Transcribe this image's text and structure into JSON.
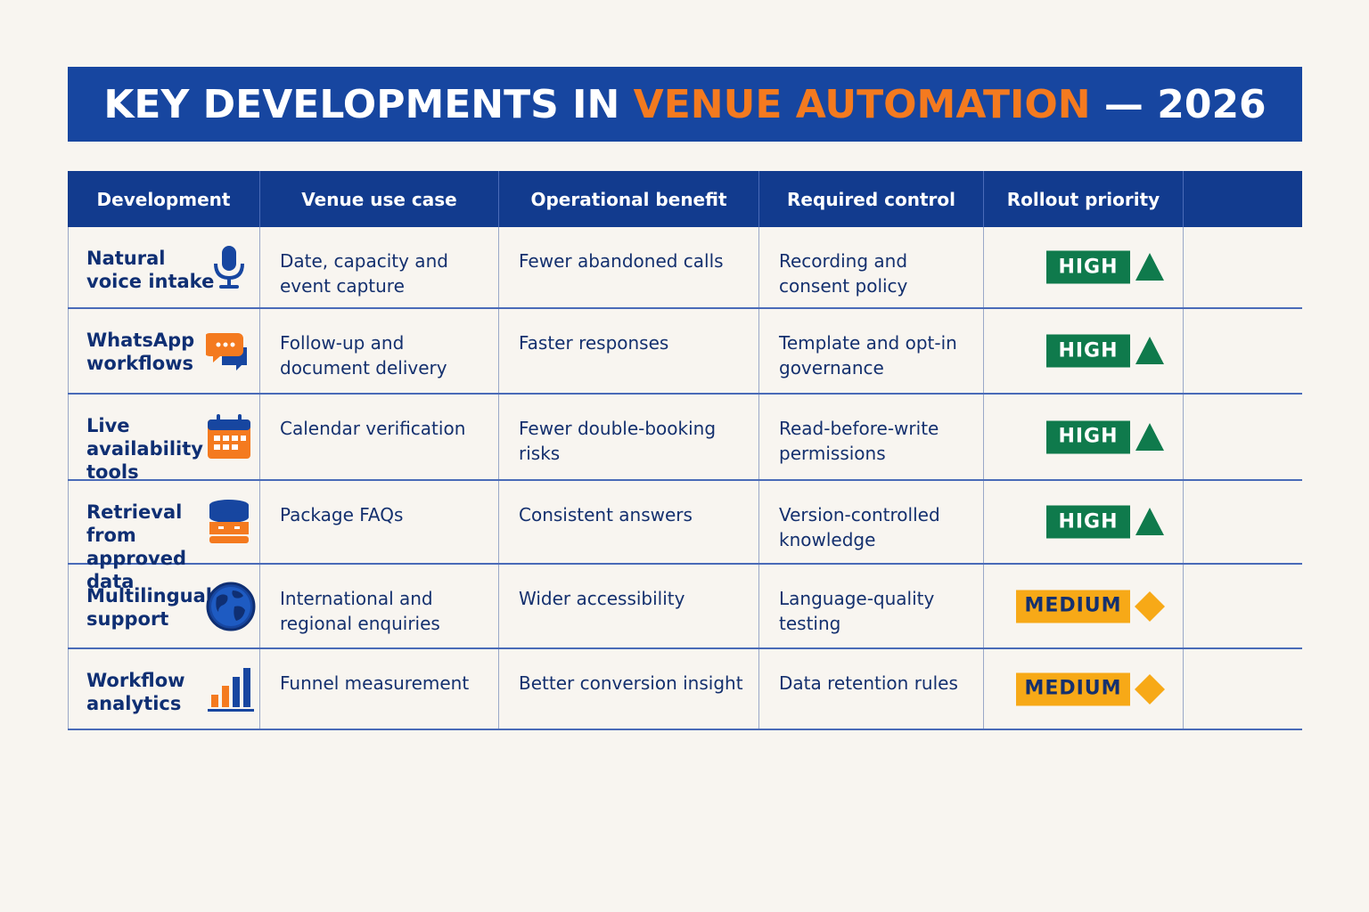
{
  "title": {
    "prefix": "KEY DEVELOPMENTS IN ",
    "accent": "VENUE AUTOMATION",
    "suffix": " — 2026"
  },
  "colors": {
    "header_blue": "#1746a0",
    "accent_orange": "#f47a1f",
    "high_green": "#0f7a4c",
    "medium_amber": "#f7a917"
  },
  "table": {
    "headers": [
      "Development",
      "Venue use case",
      "Operational benefit",
      "Required control",
      "Rollout priority",
      ""
    ],
    "rows": [
      {
        "development": "Natural voice intake",
        "icon": "microphone-icon",
        "use_case": "Date, capacity and event capture",
        "benefit": "Fewer abandoned calls",
        "control": "Recording and consent policy",
        "priority": "HIGH",
        "priority_mark": "triangle-up-icon"
      },
      {
        "development": "WhatsApp workflows",
        "icon": "chat-bubbles-icon",
        "use_case": "Follow-up and document delivery",
        "benefit": "Faster responses",
        "control": "Template and opt-in governance",
        "priority": "HIGH",
        "priority_mark": "triangle-up-icon"
      },
      {
        "development": "Live availability tools",
        "icon": "calendar-icon",
        "use_case": "Calendar verification",
        "benefit": "Fewer double-booking risks",
        "control": "Read-before-write permissions",
        "priority": "HIGH",
        "priority_mark": "triangle-up-icon"
      },
      {
        "development": "Retrieval from approved data",
        "icon": "database-icon",
        "use_case": "Package FAQs",
        "benefit": "Consistent answers",
        "control": "Version-controlled knowledge",
        "priority": "HIGH",
        "priority_mark": "triangle-up-icon"
      },
      {
        "development": "Multilingual support",
        "icon": "globe-icon",
        "use_case": "International and regional enquiries",
        "benefit": "Wider accessibility",
        "control": "Language-quality testing",
        "priority": "MEDIUM",
        "priority_mark": "diamond-icon"
      },
      {
        "development": "Workflow analytics",
        "icon": "bar-chart-icon",
        "use_case": "Funnel measurement",
        "benefit": "Better conversion insight",
        "control": "Data retention rules",
        "priority": "MEDIUM",
        "priority_mark": "diamond-icon"
      }
    ]
  }
}
